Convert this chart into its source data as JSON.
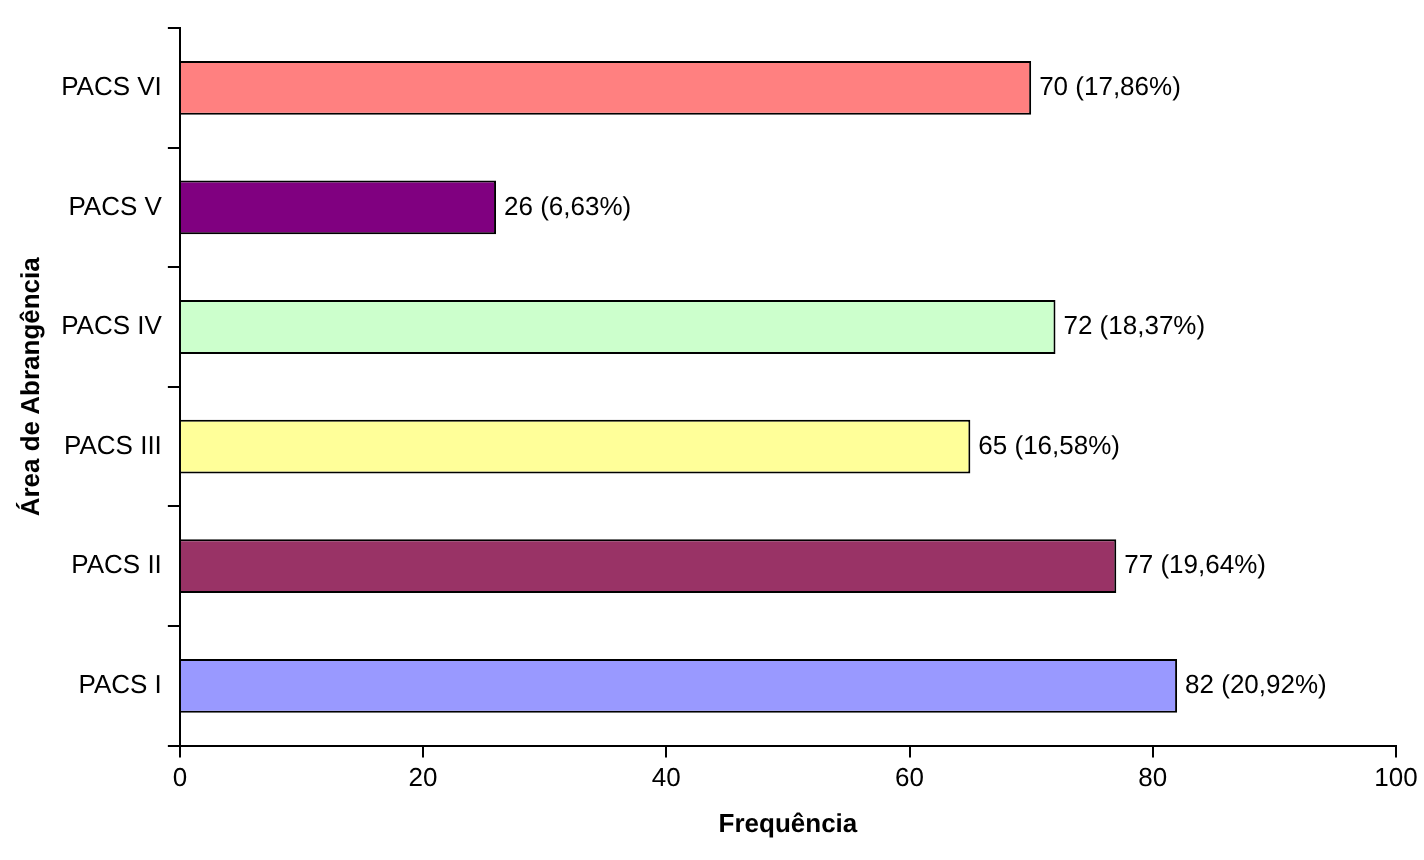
{
  "chart_data": {
    "type": "bar",
    "orientation": "horizontal",
    "xlabel": "Frequência",
    "ylabel": "Área de Abrangência",
    "categories": [
      "PACS VI",
      "PACS V",
      "PACS IV",
      "PACS III",
      "PACS II",
      "PACS I"
    ],
    "values": [
      70,
      26,
      72,
      65,
      77,
      82
    ],
    "colors": [
      "#ff8080",
      "#800080",
      "#ccffcc",
      "#ffff99",
      "#993366",
      "#9999ff"
    ],
    "value_labels": [
      "70 (17,86%)",
      "26 (6,63%)",
      "72 (18,37%)",
      "65 (16,58%)",
      "77 (19,64%)",
      "82 (20,92%)"
    ],
    "xlim": [
      0,
      100
    ],
    "xticks": [
      0,
      20,
      40,
      60,
      80,
      100
    ],
    "grid": false,
    "legend": false
  }
}
